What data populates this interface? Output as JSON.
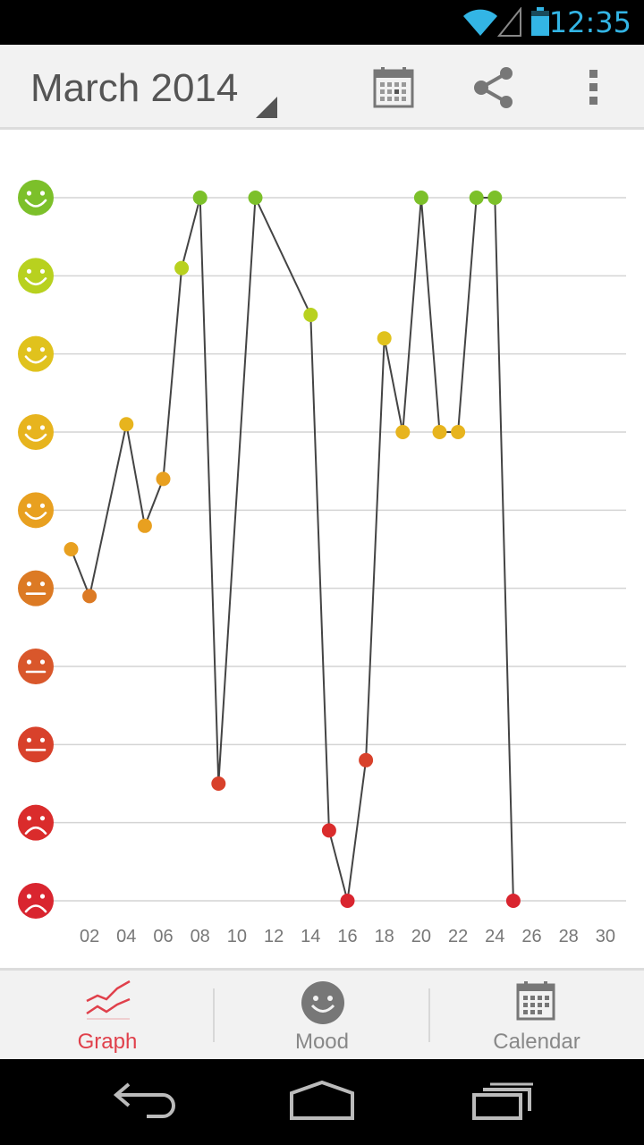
{
  "status_bar": {
    "time": "12:35"
  },
  "action_bar": {
    "title": "March 2014",
    "icons": [
      "calendar-icon",
      "share-icon",
      "overflow-menu-icon"
    ]
  },
  "chart_data": {
    "type": "line",
    "x_ticks": [
      "02",
      "04",
      "06",
      "08",
      "10",
      "12",
      "14",
      "16",
      "18",
      "20",
      "22",
      "24",
      "26",
      "28",
      "30"
    ],
    "y_levels": 10,
    "points": [
      {
        "day": 1,
        "mood": 5.5
      },
      {
        "day": 2,
        "mood": 4.9
      },
      {
        "day": 4,
        "mood": 7.1
      },
      {
        "day": 5,
        "mood": 5.8
      },
      {
        "day": 6,
        "mood": 6.4
      },
      {
        "day": 7,
        "mood": 9.1
      },
      {
        "day": 8,
        "mood": 10
      },
      {
        "day": 9,
        "mood": 2.5
      },
      {
        "day": 11,
        "mood": 10
      },
      {
        "day": 14,
        "mood": 8.5
      },
      {
        "day": 15,
        "mood": 1.9
      },
      {
        "day": 16,
        "mood": 1
      },
      {
        "day": 17,
        "mood": 2.8
      },
      {
        "day": 18,
        "mood": 8.2
      },
      {
        "day": 19,
        "mood": 7
      },
      {
        "day": 20,
        "mood": 10
      },
      {
        "day": 21,
        "mood": 7
      },
      {
        "day": 22,
        "mood": 7
      },
      {
        "day": 23,
        "mood": 10
      },
      {
        "day": 24,
        "mood": 10
      },
      {
        "day": 25,
        "mood": 1
      }
    ],
    "xlim": [
      1,
      30
    ],
    "ylim": [
      1,
      10
    ],
    "grid": true,
    "colors": [
      "#d9252f",
      "#da2c2c",
      "#d8412b",
      "#d9572b",
      "#dc7a24",
      "#e8a020",
      "#e7b41e",
      "#e0c21d",
      "#b8d11f",
      "#7cc02a"
    ]
  },
  "bottom_nav": {
    "tabs": [
      {
        "label": "Graph",
        "icon": "graph-icon",
        "active": true
      },
      {
        "label": "Mood",
        "icon": "smiley-icon",
        "active": false
      },
      {
        "label": "Calendar",
        "icon": "calendar-grid-icon",
        "active": false
      }
    ],
    "active_color": "#e0404b"
  },
  "nav_bar": {
    "icons": [
      "back-icon",
      "home-icon",
      "recents-icon"
    ]
  }
}
